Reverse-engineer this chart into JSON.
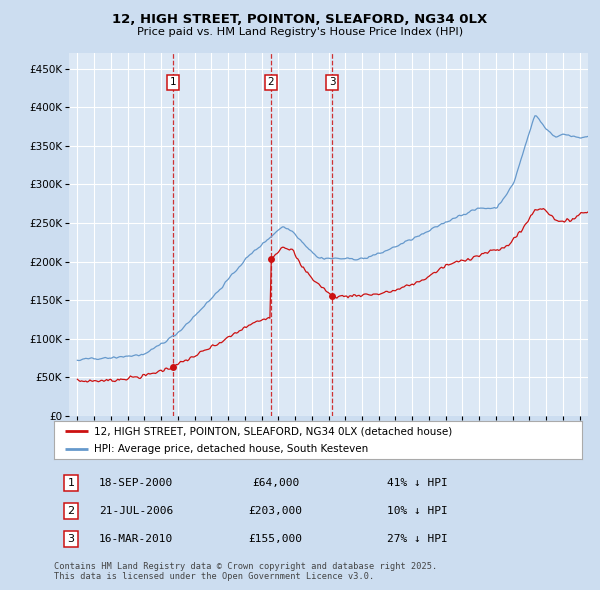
{
  "title1": "12, HIGH STREET, POINTON, SLEAFORD, NG34 0LX",
  "title2": "Price paid vs. HM Land Registry's House Price Index (HPI)",
  "bg_color": "#ccddf0",
  "plot_bg": "#dce8f5",
  "red_label": "12, HIGH STREET, POINTON, SLEAFORD, NG34 0LX (detached house)",
  "blue_label": "HPI: Average price, detached house, South Kesteven",
  "transactions": [
    {
      "num": 1,
      "date": "18-SEP-2000",
      "price": 64000,
      "pct": "41%",
      "x_year": 2000.72
    },
    {
      "num": 2,
      "date": "21-JUL-2006",
      "price": 203000,
      "pct": "10%",
      "x_year": 2006.55
    },
    {
      "num": 3,
      "date": "16-MAR-2010",
      "price": 155000,
      "pct": "27%",
      "x_year": 2010.21
    }
  ],
  "vline_dates": [
    2000.72,
    2006.55,
    2010.21
  ],
  "footer": "Contains HM Land Registry data © Crown copyright and database right 2025.\nThis data is licensed under the Open Government Licence v3.0.",
  "ylim": [
    0,
    470000
  ],
  "xlim_start": 1994.5,
  "xlim_end": 2025.5,
  "yticks": [
    0,
    50000,
    100000,
    150000,
    200000,
    250000,
    300000,
    350000,
    400000,
    450000
  ],
  "xtick_start": 1995,
  "xtick_end": 2025
}
